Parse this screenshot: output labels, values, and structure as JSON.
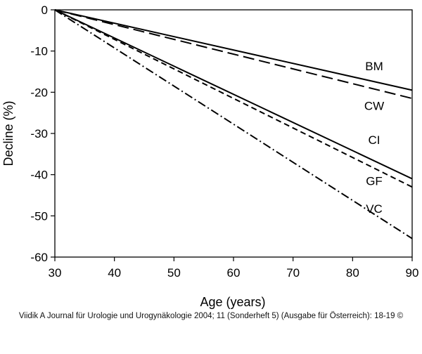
{
  "chart_data": {
    "type": "line",
    "xlabel": "Age (years)",
    "ylabel": "Decline (%)",
    "xlim": [
      30,
      90
    ],
    "ylim": [
      -60,
      0
    ],
    "xticks": [
      30,
      40,
      50,
      60,
      70,
      80,
      90
    ],
    "yticks": [
      0,
      -10,
      -20,
      -30,
      -40,
      -50,
      -60
    ],
    "grid": false,
    "series": [
      {
        "name": "BM",
        "style": "solid",
        "x": [
          30,
          90
        ],
        "y": [
          0,
          -19.5
        ]
      },
      {
        "name": "CW",
        "style": "long-dash",
        "x": [
          30,
          90
        ],
        "y": [
          0,
          -21.5
        ]
      },
      {
        "name": "CI",
        "style": "solid",
        "x": [
          30,
          90
        ],
        "y": [
          0,
          -41
        ]
      },
      {
        "name": "GF",
        "style": "short-dash",
        "x": [
          30,
          90
        ],
        "y": [
          0,
          -43
        ]
      },
      {
        "name": "VC",
        "style": "dash-dot",
        "x": [
          30,
          90
        ],
        "y": [
          0,
          -55.5
        ]
      }
    ]
  },
  "caption": "Viidik A Journal für Urologie und Urogynäkologie 2004; 11 (Sonderheft 5) (Ausgabe für Österreich): 18-19 ©"
}
